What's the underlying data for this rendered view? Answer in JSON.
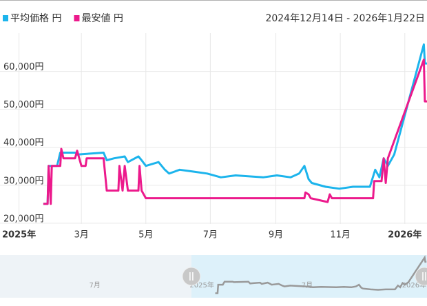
{
  "chart_data": {
    "type": "line",
    "date_range": "2024年12月14日 - 2026年1月22日",
    "xlim": [
      "2024-12-14",
      "2026-01-22"
    ],
    "xticks": [
      {
        "value": "2025-01-01",
        "label": "2025年"
      },
      {
        "value": "2025-03-01",
        "label": "3月"
      },
      {
        "value": "2025-05-01",
        "label": "5月"
      },
      {
        "value": "2025-07-01",
        "label": "7月"
      },
      {
        "value": "2025-09-01",
        "label": "9月"
      },
      {
        "value": "2025-11-01",
        "label": "11月"
      },
      {
        "value": "2026-01-01",
        "label": "2026年"
      }
    ],
    "ylim": [
      18700,
      69000
    ],
    "yticks": [
      {
        "value": 20000,
        "label": "20,000円"
      },
      {
        "value": 30000,
        "label": "30,000円"
      },
      {
        "value": 40000,
        "label": "40,000円"
      },
      {
        "value": 50000,
        "label": "50,000円"
      },
      {
        "value": 60000,
        "label": "60,000円"
      }
    ],
    "grid": true,
    "series": [
      {
        "name": "平均価格 円",
        "color": "#1cb4ec",
        "x": [
          "2025-01-24",
          "2025-01-28",
          "2025-01-29",
          "2025-02-06",
          "2025-02-09",
          "2025-02-23",
          "2025-02-25",
          "2025-03-22",
          "2025-03-25",
          "2025-04-01",
          "2025-04-11",
          "2025-04-14",
          "2025-04-24",
          "2025-04-27",
          "2025-05-01",
          "2025-05-13",
          "2025-05-19",
          "2025-05-23",
          "2025-06-02",
          "2025-06-15",
          "2025-06-28",
          "2025-07-11",
          "2025-07-25",
          "2025-08-20",
          "2025-09-02",
          "2025-09-15",
          "2025-09-23",
          "2025-09-28",
          "2025-10-02",
          "2025-10-05",
          "2025-10-18",
          "2025-10-31",
          "2025-11-13",
          "2025-11-29",
          "2025-12-04",
          "2025-12-08",
          "2025-12-12",
          "2025-12-16",
          "2025-12-22",
          "2026-01-19",
          "2026-01-20",
          "2026-01-22"
        ],
        "values": [
          24000,
          24000,
          34000,
          34000,
          37500,
          37500,
          37000,
          37500,
          35500,
          36000,
          36500,
          35000,
          36500,
          35500,
          34000,
          35000,
          33000,
          32000,
          33000,
          32500,
          32000,
          31000,
          31500,
          31000,
          31500,
          31000,
          32000,
          34000,
          30500,
          29500,
          28500,
          28000,
          28500,
          28500,
          33000,
          31000,
          36000,
          34000,
          37000,
          66000,
          61000,
          61000
        ]
      },
      {
        "name": "最安値 円",
        "color": "#ec1a8c",
        "x": [
          "2025-01-24",
          "2025-01-28",
          "2025-01-29",
          "2025-01-31",
          "2025-02-01",
          "2025-02-09",
          "2025-02-10",
          "2025-02-12",
          "2025-02-23",
          "2025-02-25",
          "2025-02-27",
          "2025-03-01",
          "2025-03-05",
          "2025-03-06",
          "2025-03-22",
          "2025-03-25",
          "2025-04-05",
          "2025-04-06",
          "2025-04-09",
          "2025-04-11",
          "2025-04-14",
          "2025-04-24",
          "2025-04-25",
          "2025-04-27",
          "2025-05-01",
          "2025-09-28",
          "2025-09-29",
          "2025-10-02",
          "2025-10-04",
          "2025-10-20",
          "2025-10-22",
          "2025-10-24",
          "2025-12-02",
          "2025-12-03",
          "2025-12-10",
          "2025-12-12",
          "2025-12-14",
          "2025-12-16",
          "2026-01-19",
          "2026-01-20",
          "2026-01-22"
        ],
        "values": [
          24000,
          24000,
          34000,
          24000,
          34000,
          34000,
          38500,
          36000,
          36000,
          38000,
          36000,
          34000,
          34000,
          36000,
          36000,
          27500,
          27500,
          34000,
          27500,
          34000,
          27500,
          27500,
          34000,
          27500,
          25500,
          25500,
          27000,
          26500,
          25500,
          24500,
          26500,
          25500,
          25500,
          30000,
          30000,
          36000,
          29500,
          36000,
          62000,
          51000,
          51000
        ]
      }
    ],
    "navigator": {
      "xlim": [
        "2024-01-20",
        "2026-01-23"
      ],
      "xticks": [
        {
          "value": "2024-07-01",
          "label": "7月"
        },
        {
          "value": "2025-01-01",
          "label": "2025年"
        },
        {
          "value": "2025-07-01",
          "label": "7月"
        },
        {
          "value": "2026-01-01",
          "label": "2026年"
        }
      ]
    }
  }
}
